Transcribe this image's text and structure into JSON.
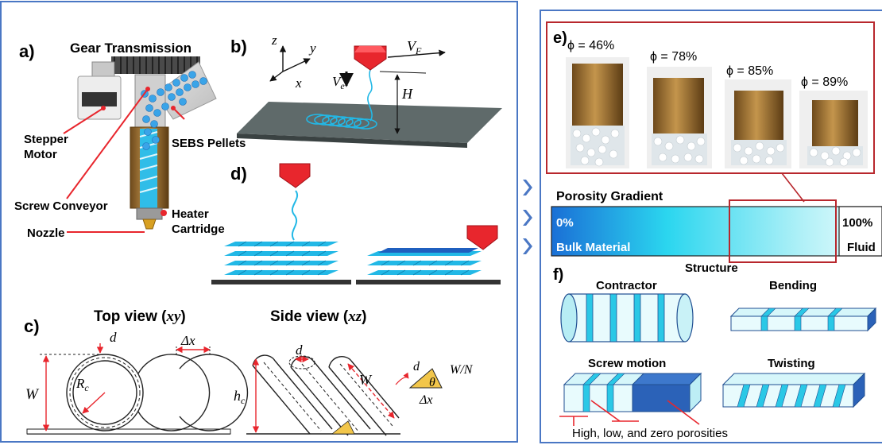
{
  "panel_a": {
    "label": "a)",
    "gear_transmission": "Gear Transmission",
    "stepper_motor_line1": "Stepper",
    "stepper_motor_line2": "Motor",
    "sebs_pellets": "SEBS Pellets",
    "screw_conveyor": "Screw Conveyor",
    "heater_line1": "Heater",
    "heater_line2": "Cartridge",
    "nozzle": "Nozzle"
  },
  "panel_b": {
    "label": "b)",
    "axis_z": "z",
    "axis_y": "y",
    "axis_x": "x",
    "v_f": "V",
    "v_f_sub": "F",
    "v_e": "V",
    "v_e_sub": "e",
    "h": "H"
  },
  "panel_c": {
    "label": "c)",
    "top_view": "Top view (",
    "top_view_var": "xy",
    "side_view": "Side view (",
    "side_view_var": "xz",
    "close_paren": ")",
    "d": "d",
    "delta_x": "Δx",
    "w": "W",
    "r": "R",
    "r_sub": "c",
    "h": "h",
    "h_sub": "c",
    "theta": "θ",
    "w_over_n": "W/N"
  },
  "panel_d": {
    "label": "d)"
  },
  "panel_e": {
    "label": "e)",
    "samples": [
      {
        "phi": "ϕ = 46%"
      },
      {
        "phi": "ϕ = 78%"
      },
      {
        "phi": "ϕ = 85%"
      },
      {
        "phi": "ϕ = 89%"
      }
    ],
    "gradient_title": "Porosity Gradient",
    "left_pct": "0%",
    "right_pct": "100%",
    "left_label": "Bulk Material",
    "right_label": "Fluid"
  },
  "panel_f": {
    "label": "f)",
    "structure": "Structure",
    "contractor": "Contractor",
    "bending": "Bending",
    "screw_motion": "Screw motion",
    "twisting": "Twisting",
    "porosities": "High,  low, and zero porosities"
  },
  "colors": {
    "frame": "#4a77c4",
    "cyan": "#21b6e8",
    "red": "#e8262d",
    "brass": "#b07e3c",
    "gradient_dark": "#1a73d9",
    "gradient_light": "#dff8fb"
  }
}
